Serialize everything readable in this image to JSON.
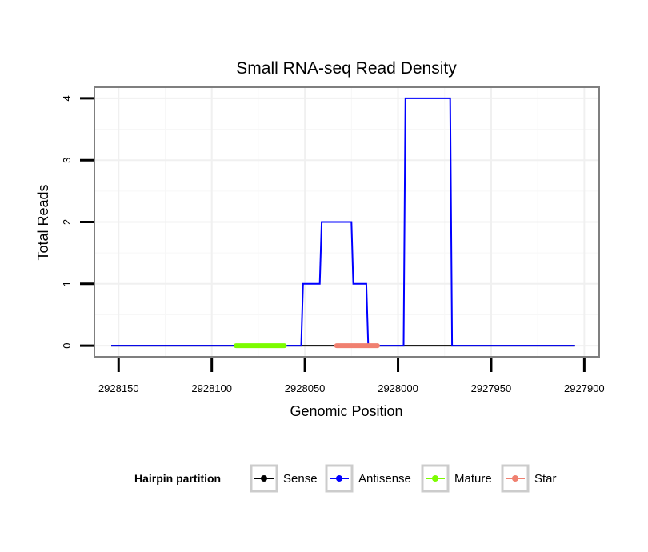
{
  "chart_data": {
    "type": "line",
    "title": "Small RNA-seq Read Density",
    "xlabel": "Genomic Position",
    "ylabel": "Total Reads",
    "x_reversed": true,
    "xlim": [
      2928163,
      2927892
    ],
    "ylim": [
      -0.18,
      4.18
    ],
    "x_ticks": [
      2928150,
      2928100,
      2928050,
      2928000,
      2927950,
      2927900
    ],
    "x_tick_labels": [
      "2928150",
      "2928100",
      "2928050",
      "2928000",
      "2927950",
      "2927900"
    ],
    "y_ticks": [
      0,
      1,
      2,
      3,
      4
    ],
    "y_tick_labels": [
      "0",
      "1",
      "2",
      "3",
      "4"
    ],
    "grid": true,
    "legend_title": "Hairpin partition",
    "legend_position": "bottom",
    "series": [
      {
        "name": "Sense",
        "color": "#000000",
        "x": [
          2928154,
          2927905
        ],
        "y": [
          0,
          0
        ]
      },
      {
        "name": "Antisense",
        "color": "#0000ff",
        "x": [
          2928154,
          2928052,
          2928051,
          2928042,
          2928041,
          2928025,
          2928024,
          2928017,
          2928016,
          2927997,
          2927996,
          2927972,
          2927971,
          2927905
        ],
        "y": [
          0,
          0,
          1,
          1,
          2,
          2,
          1,
          1,
          0,
          0,
          4,
          4,
          0,
          0
        ]
      },
      {
        "name": "Mature",
        "color": "#7cfc00",
        "x": [
          2928087,
          2928061
        ],
        "y": [
          0,
          0
        ]
      },
      {
        "name": "Star",
        "color": "#f08070",
        "x": [
          2928033,
          2928011
        ],
        "y": [
          0,
          0
        ]
      }
    ]
  }
}
